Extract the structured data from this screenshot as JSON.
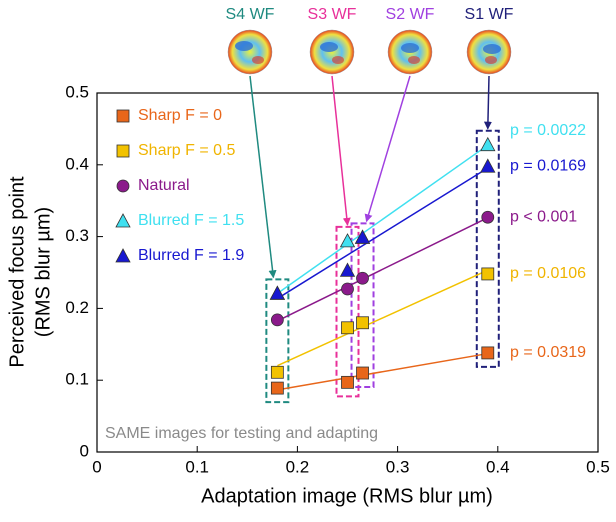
{
  "chart_data": {
    "type": "line",
    "x_label": "Adaptation image (RMS blur µm)",
    "y_label": [
      "Perceived focus point",
      "(RMS blur µm)"
    ],
    "x": [
      0.18,
      0.25,
      0.265,
      0.39
    ],
    "xlim": [
      0,
      0.5
    ],
    "xticks": [
      0,
      0.1,
      0.2,
      0.3,
      0.4,
      0.5
    ],
    "ylim": [
      0,
      0.5
    ],
    "yticks": [
      0,
      0.1,
      0.2,
      0.3,
      0.4,
      0.5
    ],
    "series": [
      {
        "name": "Sharp F = 0",
        "color": "#e8661a",
        "marker": "square",
        "values": [
          0.089,
          0.097,
          0.11,
          0.138
        ],
        "p_label": "p = 0.0319"
      },
      {
        "name": "Sharp F = 0.5",
        "color": "#f2c200",
        "marker": "square",
        "values": [
          0.111,
          0.173,
          0.18,
          0.248
        ],
        "p_label": "p = 0.0106"
      },
      {
        "name": "Natural",
        "color": "#8b1a8b",
        "marker": "circle",
        "values": [
          0.184,
          0.227,
          0.242,
          0.327
        ],
        "p_label": "p < 0.001"
      },
      {
        "name": "Blurred F = 1.5",
        "color": "#40e0f0",
        "marker": "triangle",
        "values": [
          0.221,
          0.294,
          0.299,
          0.428
        ],
        "p_label": "p = 0.0022"
      },
      {
        "name": "Blurred F = 1.9",
        "color": "#1818d0",
        "marker": "triangle",
        "values": [
          0.221,
          0.253,
          0.299,
          0.398
        ],
        "p_label": "p = 0.0169"
      }
    ],
    "wavefronts": [
      {
        "label": "S4 WF",
        "color": "#1f8a80"
      },
      {
        "label": "S3 WF",
        "color": "#e8309a"
      },
      {
        "label": "S2 WF",
        "color": "#a040e0"
      },
      {
        "label": "S1 WF",
        "color": "#20207a"
      }
    ],
    "note": "SAME images for testing and adapting"
  }
}
